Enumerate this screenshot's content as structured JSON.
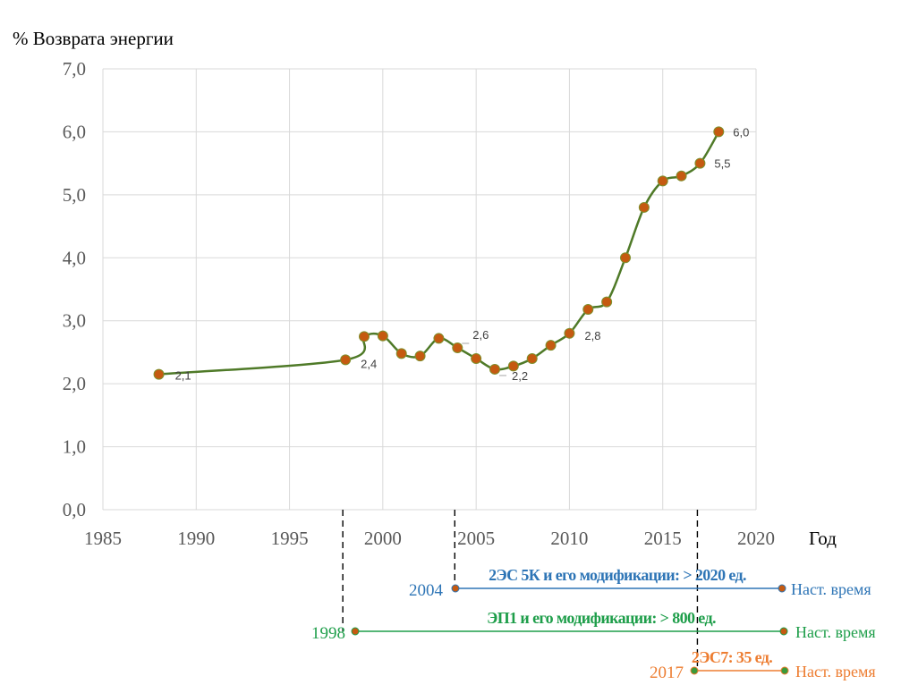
{
  "chart_data": {
    "type": "line",
    "ylabel": "% Возврата энергии",
    "xlabel": "Год",
    "xlim": [
      1985,
      2020
    ],
    "ylim": [
      0,
      7
    ],
    "x_ticks": [
      1985,
      1990,
      1995,
      2000,
      2005,
      2010,
      2015,
      2020
    ],
    "y_ticks": [
      "0,0",
      "1,0",
      "2,0",
      "3,0",
      "4,0",
      "5,0",
      "6,0",
      "7,0"
    ],
    "grid": true,
    "series": [
      {
        "x": [
          1988,
          1998,
          1999,
          2000,
          2001,
          2002,
          2003,
          2004,
          2005,
          2006,
          2007,
          2008,
          2009,
          2010,
          2011,
          2012,
          2013,
          2014,
          2015,
          2016,
          2017,
          2018
        ],
        "values": [
          2.15,
          2.38,
          2.75,
          2.76,
          2.48,
          2.44,
          2.72,
          2.57,
          2.4,
          2.23,
          2.28,
          2.4,
          2.61,
          2.8,
          3.18,
          3.3,
          4.0,
          4.8,
          5.22,
          5.3,
          5.5,
          6.0
        ]
      }
    ],
    "data_labels": [
      {
        "x": 1988,
        "text": "2,1"
      },
      {
        "x": 1998,
        "text": "2,4"
      },
      {
        "x": 2004,
        "text": "2,6"
      },
      {
        "x": 2006,
        "text": "2,2"
      },
      {
        "x": 2010,
        "text": "2,8"
      },
      {
        "x": 2017,
        "text": "5,5"
      },
      {
        "x": 2018,
        "text": "6,0"
      }
    ],
    "colors": {
      "line": "#4f7a28",
      "marker": "#c55a11",
      "blue": "#2e75b6",
      "green": "#1e9e4a",
      "orange": "#ed7d31"
    }
  },
  "timelines": [
    {
      "start_label": "2004",
      "text": "2ЭС 5К и его модификации: > 2020 ед.",
      "end_label": "Наст. время",
      "color": "#2e75b6"
    },
    {
      "start_label": "1998",
      "text": "ЭП1 и его модификации: > 800 ед.",
      "end_label": "Наст. время",
      "color": "#1e9e4a"
    },
    {
      "start_label": "2017",
      "text": "2ЭС7: 35 ед.",
      "end_label": "Наст. время",
      "color": "#ed7d31"
    }
  ]
}
